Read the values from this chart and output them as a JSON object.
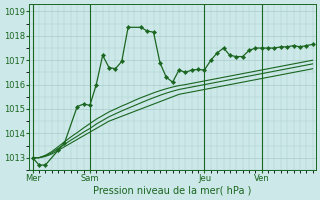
{
  "bg_color": "#cce8e8",
  "grid_color": "#aacccc",
  "line_color": "#1a6620",
  "marker_color": "#1a6620",
  "title": "Pression niveau de la mer( hPa )",
  "title_color": "#1a6620",
  "ylim": [
    1012.5,
    1019.3
  ],
  "yticks": [
    1013,
    1014,
    1015,
    1016,
    1017,
    1018,
    1019
  ],
  "day_labels": [
    "Mer",
    "Sam",
    "Jeu",
    "Ven"
  ],
  "day_positions": [
    0,
    9,
    27,
    36
  ],
  "n_points": 45,
  "series1_x": [
    0,
    1,
    2,
    4,
    5,
    7,
    8,
    9,
    10,
    11,
    12,
    13,
    14,
    15,
    17,
    18,
    19,
    20,
    21,
    22,
    23,
    24,
    25,
    26,
    27,
    28,
    29,
    30,
    31,
    32,
    33,
    34,
    35,
    36,
    37,
    38,
    39,
    40,
    41,
    42,
    43,
    44
  ],
  "series1_y": [
    1013.0,
    1012.7,
    1012.7,
    1013.3,
    1013.6,
    1015.1,
    1015.2,
    1015.15,
    1016.0,
    1017.2,
    1016.7,
    1016.65,
    1016.95,
    1018.35,
    1018.35,
    1018.2,
    1018.15,
    1016.9,
    1016.3,
    1016.1,
    1016.6,
    1016.5,
    1016.6,
    1016.62,
    1016.6,
    1017.0,
    1017.3,
    1017.5,
    1017.2,
    1017.15,
    1017.15,
    1017.4,
    1017.5,
    1017.5,
    1017.5,
    1017.5,
    1017.55,
    1017.55,
    1017.6,
    1017.55,
    1017.6,
    1017.65
  ],
  "series2": [
    1013.0,
    1013.0,
    1013.05,
    1013.15,
    1013.3,
    1013.45,
    1013.6,
    1013.75,
    1013.9,
    1014.05,
    1014.2,
    1014.35,
    1014.5,
    1014.6,
    1014.7,
    1014.8,
    1014.9,
    1015.0,
    1015.1,
    1015.2,
    1015.3,
    1015.4,
    1015.5,
    1015.6,
    1015.65,
    1015.7,
    1015.75,
    1015.8,
    1015.85,
    1015.9,
    1015.95,
    1016.0,
    1016.05,
    1016.1,
    1016.15,
    1016.2,
    1016.25,
    1016.3,
    1016.35,
    1016.4,
    1016.45,
    1016.5,
    1016.55,
    1016.6,
    1016.65
  ],
  "series3": [
    1013.0,
    1013.0,
    1013.08,
    1013.2,
    1013.38,
    1013.55,
    1013.72,
    1013.88,
    1014.05,
    1014.2,
    1014.38,
    1014.53,
    1014.68,
    1014.8,
    1014.92,
    1015.03,
    1015.14,
    1015.25,
    1015.36,
    1015.46,
    1015.56,
    1015.65,
    1015.73,
    1015.8,
    1015.85,
    1015.9,
    1015.95,
    1016.0,
    1016.05,
    1016.1,
    1016.15,
    1016.2,
    1016.25,
    1016.3,
    1016.35,
    1016.4,
    1016.45,
    1016.5,
    1016.55,
    1016.6,
    1016.65,
    1016.7,
    1016.75,
    1016.8,
    1016.85
  ],
  "series4": [
    1013.0,
    1013.0,
    1013.1,
    1013.25,
    1013.45,
    1013.65,
    1013.85,
    1014.03,
    1014.22,
    1014.4,
    1014.58,
    1014.73,
    1014.88,
    1015.0,
    1015.12,
    1015.23,
    1015.35,
    1015.46,
    1015.56,
    1015.66,
    1015.75,
    1015.83,
    1015.9,
    1015.96,
    1016.0,
    1016.05,
    1016.1,
    1016.15,
    1016.2,
    1016.25,
    1016.3,
    1016.35,
    1016.4,
    1016.45,
    1016.5,
    1016.55,
    1016.6,
    1016.65,
    1016.7,
    1016.75,
    1016.8,
    1016.85,
    1016.9,
    1016.95,
    1017.0
  ]
}
